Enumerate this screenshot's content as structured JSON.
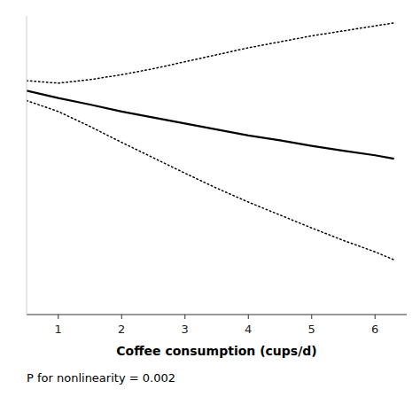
{
  "chart_data": {
    "type": "line",
    "xlabel": "Coffee consumption  (cups/d)",
    "annotation": "P for nonlinearity = 0.002",
    "x": [
      0.5,
      1.0,
      1.5,
      2.0,
      2.5,
      3.0,
      3.5,
      4.0,
      4.5,
      5.0,
      5.5,
      6.0,
      6.3
    ],
    "series": [
      {
        "color": "#000000",
        "line_style": "solid",
        "values": [
          1.0,
          0.985,
          0.972,
          0.958,
          0.946,
          0.934,
          0.922,
          0.91,
          0.9,
          0.889,
          0.879,
          0.87,
          0.863
        ]
      },
      {
        "color": "#000000",
        "line_style": "dotted",
        "values": [
          1.02,
          1.015,
          1.022,
          1.032,
          1.044,
          1.058,
          1.072,
          1.086,
          1.098,
          1.11,
          1.12,
          1.13,
          1.136
        ]
      },
      {
        "color": "#000000",
        "line_style": "dotted",
        "values": [
          0.98,
          0.958,
          0.928,
          0.896,
          0.865,
          0.834,
          0.804,
          0.776,
          0.75,
          0.724,
          0.699,
          0.676,
          0.66
        ]
      }
    ],
    "xlim": [
      0.5,
      6.5
    ],
    "ylim": [
      0.55,
      1.15
    ],
    "xticks": [
      1,
      2,
      3,
      4,
      5,
      6
    ],
    "grid": false,
    "tick_labels": "x"
  }
}
